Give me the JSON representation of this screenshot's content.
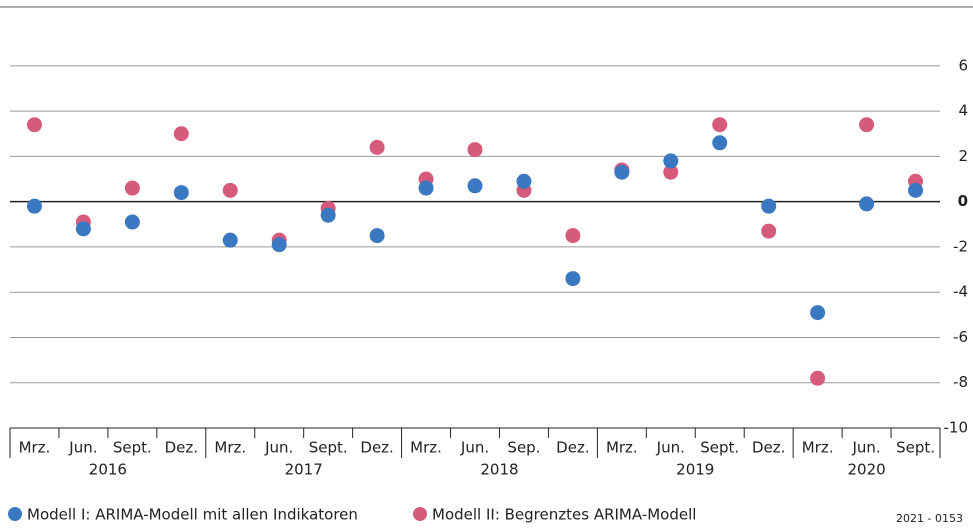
{
  "chart_data": {
    "type": "scatter",
    "categories": [
      "Mrz.",
      "Jun.",
      "Sept.",
      "Dez.",
      "Mrz.",
      "Jun.",
      "Sept.",
      "Dez.",
      "Mrz.",
      "Jun.",
      "Sep.",
      "Dez.",
      "Mrz.",
      "Jun.",
      "Sept.",
      "Dez.",
      "Mrz.",
      "Jun.",
      "Sept."
    ],
    "years": [
      "2016",
      "2017",
      "2018",
      "2019",
      "2020"
    ],
    "series": [
      {
        "name": "Modell I: ARIMA-Modell mit allen Indikatoren",
        "color": "#3b78c2",
        "values": [
          -0.2,
          -1.2,
          -0.9,
          0.4,
          -1.7,
          -1.9,
          -0.6,
          -1.5,
          0.6,
          0.7,
          0.9,
          -3.4,
          1.3,
          1.8,
          2.6,
          -0.2,
          -4.9,
          -0.1,
          0.5
        ]
      },
      {
        "name": "Modell II: Begrenztes ARIMA-Modell",
        "color": "#d65a7a",
        "values": [
          3.4,
          -0.9,
          0.6,
          3.0,
          0.5,
          -1.7,
          -0.3,
          2.4,
          1.0,
          2.3,
          0.5,
          -1.5,
          1.4,
          1.3,
          3.4,
          -1.3,
          -7.8,
          3.4,
          0.9
        ]
      }
    ],
    "ylim": [
      -10,
      8.6
    ],
    "yticks": [
      -10,
      -8,
      -6,
      -4,
      -2,
      0,
      2,
      4,
      6
    ],
    "grid": true,
    "note": "2021 - 0153"
  }
}
